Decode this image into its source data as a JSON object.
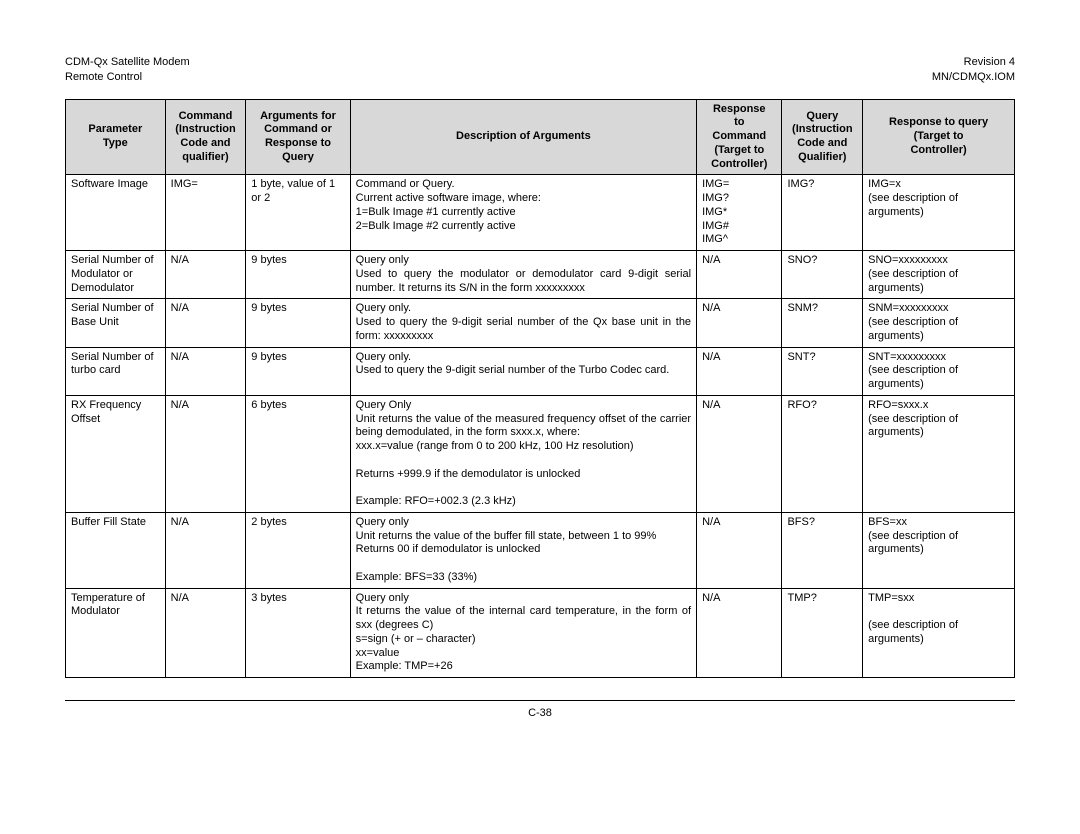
{
  "header": {
    "left1": "CDM-Qx Satellite Modem",
    "left2": "Remote Control",
    "right1": "Revision 4",
    "right2": "MN/CDMQx.IOM"
  },
  "columns": [
    "Parameter\nType",
    "Command\n(Instruction\nCode and\nqualifier)",
    "Arguments for\nCommand or\nResponse to\nQuery",
    "Description of Arguments",
    "Response\nto\nCommand\n(Target to\nController)",
    "Query\n(Instruction\nCode and\nQualifier)",
    "Response to query\n(Target to\nController)"
  ],
  "column_widths_pct": [
    10.5,
    8.5,
    11,
    36.5,
    9,
    8.5,
    16
  ],
  "header_bg": "#d8d8d8",
  "border_color": "#000000",
  "background_color": "#ffffff",
  "font_family": "Arial",
  "body_fontsize_pt": 8.5,
  "header_fontsize_pt": 8.5,
  "rows": [
    {
      "param": "Software Image",
      "cmd": "IMG=",
      "args": "1 byte, value of 1 or 2",
      "desc": "Command or Query.\nCurrent active software image, where:\n1=Bulk Image #1 currently active\n2=Bulk Image #2 currently active",
      "resp": "IMG=\nIMG?\nIMG*\nIMG#\nIMG^",
      "query": "IMG?",
      "qresp": "IMG=x\n(see description of arguments)"
    },
    {
      "param": "Serial Number of Modulator or Demodulator",
      "cmd": "N/A",
      "args": "9 bytes",
      "desc": "Query only\nUsed to query the modulator or demodulator card 9-digit serial number. It returns its S/N in the form xxxxxxxxx",
      "resp": "N/A",
      "query": "SNO?",
      "qresp": "SNO=xxxxxxxxx\n(see description of arguments)"
    },
    {
      "param": "Serial Number of Base Unit",
      "cmd": "N/A",
      "args": "9 bytes",
      "desc": "Query only.\nUsed to query the 9-digit serial number of the Qx base unit in the form: xxxxxxxxx",
      "resp": "N/A",
      "query": "SNM?",
      "qresp": "SNM=xxxxxxxxx\n(see description of arguments)"
    },
    {
      "param": "Serial Number of turbo card",
      "cmd": "N/A",
      "args": "9 bytes",
      "desc": "Query only.\nUsed to query the 9-digit serial number of the Turbo Codec card.",
      "resp": "N/A",
      "query": "SNT?",
      "qresp": "SNT=xxxxxxxxx\n(see description of arguments)"
    },
    {
      "param": "RX Frequency Offset",
      "cmd": "N/A",
      "args": "6 bytes",
      "desc": "Query Only\nUnit returns the value of the measured frequency offset of the carrier being demodulated, in the form sxxx.x, where:\nxxx.x=value (range from 0 to 200 kHz, 100 Hz resolution)\n\nReturns +999.9 if the demodulator is unlocked\n\nExample: RFO=+002.3 (2.3 kHz)",
      "resp": "N/A",
      "query": "RFO?",
      "qresp": "RFO=sxxx.x\n(see description of arguments)"
    },
    {
      "param": "Buffer Fill State",
      "cmd": "N/A",
      "args": "2 bytes",
      "desc": "Query only\nUnit returns the value of the buffer fill state, between 1 to 99%\nReturns 00 if demodulator is unlocked\n\nExample: BFS=33 (33%)",
      "resp": "N/A",
      "query": "BFS?",
      "qresp": "BFS=xx\n(see description of arguments)"
    },
    {
      "param": "Temperature of Modulator",
      "cmd": "N/A",
      "args": "3 bytes",
      "desc": "Query only\nIt returns the value of the internal card temperature, in the form of sxx (degrees C)\ns=sign (+ or – character)\nxx=value\nExample: TMP=+26",
      "resp": "N/A",
      "query": "TMP?",
      "qresp": "TMP=sxx\n\n(see description of arguments)"
    }
  ],
  "page_number": "C-38"
}
